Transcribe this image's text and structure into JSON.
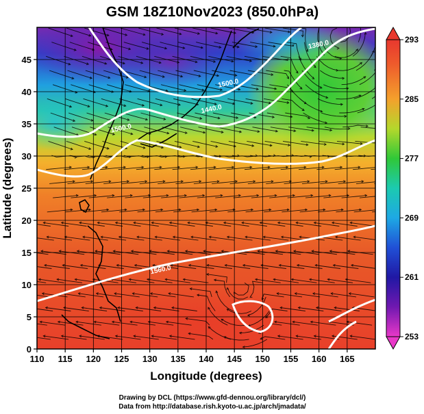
{
  "title": "GSM 18Z10Nov2023 (850.0hPa)",
  "credits": {
    "line1": "Drawing by DCL (https://www.gfd-dennou.org/library/dcl/)",
    "line2": "Data from http://database.rish.kyoto-u.ac.jp/arch/jmadata/"
  },
  "chart_data": {
    "type": "heatmap",
    "title": "GSM 18Z10Nov2023 (850.0hPa)",
    "xlabel": "Longitude (degrees)",
    "ylabel": "Latitude (degrees)",
    "xlim": [
      110,
      170
    ],
    "ylim": [
      0,
      50
    ],
    "x_ticks": [
      "110",
      "115",
      "120",
      "125",
      "130",
      "135",
      "140",
      "145",
      "150",
      "155",
      "160",
      "165"
    ],
    "y_ticks": [
      "0",
      "5",
      "10",
      "15",
      "20",
      "25",
      "30",
      "35",
      "40",
      "45"
    ],
    "colorbar": {
      "labels": [
        "293",
        "285",
        "277",
        "269",
        "261",
        "253"
      ],
      "values": [
        293,
        285,
        277,
        269,
        261,
        253
      ],
      "range": [
        253,
        293
      ],
      "colors": [
        "#e8382e",
        "#f07a2a",
        "#f4b82e",
        "#a8d82a",
        "#34c632",
        "#1fc8a8",
        "#1ea6e2",
        "#2050d8",
        "#2018a8",
        "#6818a8",
        "#c818c0",
        "#e830c8"
      ]
    },
    "contour_labels": [
      {
        "text": "1560.0",
        "lon": 132,
        "lat": 12
      },
      {
        "text": "1440.0",
        "lon": 141,
        "lat": 37
      },
      {
        "text": "1500.0",
        "lon": 125,
        "lat": 34
      },
      {
        "text": "1380.0",
        "lon": 160,
        "lat": 47
      },
      {
        "text": "1500.0",
        "lon": 144,
        "lat": 41
      }
    ],
    "grid": true,
    "features": [
      "temperature shading",
      "geopotential height contours",
      "wind streamlines",
      "coastlines"
    ]
  }
}
